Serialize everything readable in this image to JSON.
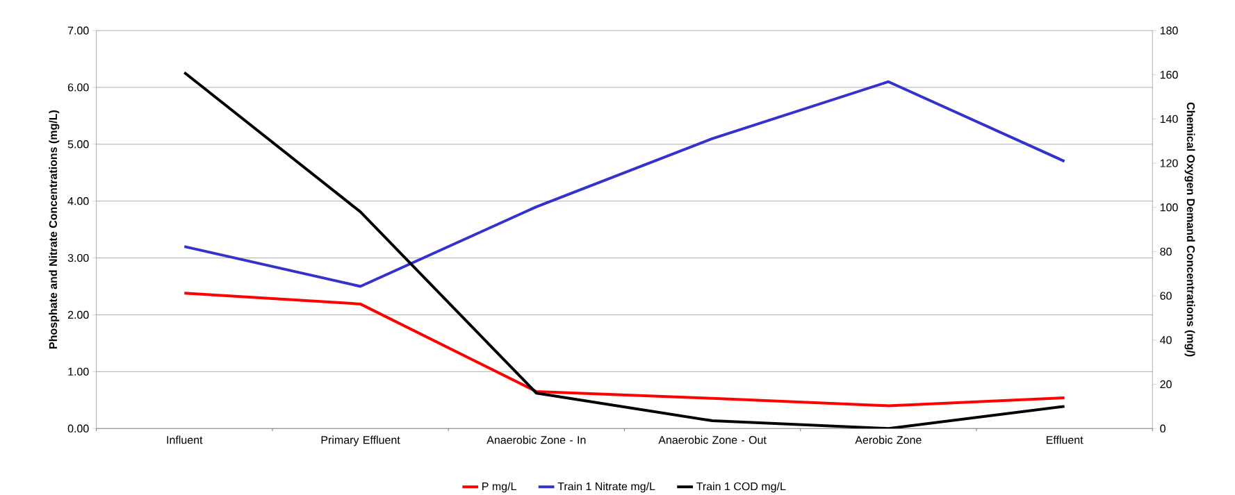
{
  "chart_data": {
    "type": "line",
    "categories": [
      "Influent",
      "Primary Effluent",
      "Anaerobic Zone - In",
      "Anaerobic Zone - Out",
      "Aerobic Zone",
      "Effluent"
    ],
    "ylabel": "Phosphate and Nitrate Concentrations (mg/L)",
    "y2label": "Chemical Oxygen Demand Concentrations (mg/)",
    "ylim": [
      0,
      7
    ],
    "yticks": [
      {
        "value": 0,
        "label": "0.00"
      },
      {
        "value": 1,
        "label": "1.00"
      },
      {
        "value": 2,
        "label": "2.00"
      },
      {
        "value": 3,
        "label": "3.00"
      },
      {
        "value": 4,
        "label": "4.00"
      },
      {
        "value": 5,
        "label": "5.00"
      },
      {
        "value": 6,
        "label": "6.00"
      },
      {
        "value": 7,
        "label": "7.00"
      }
    ],
    "y2lim": [
      0,
      180
    ],
    "y2ticks": [
      0,
      20,
      40,
      60,
      80,
      100,
      120,
      140,
      160,
      180
    ],
    "grid": "y",
    "legend": "bottom",
    "marker": "none",
    "line_style": "solid",
    "series": [
      {
        "name": "P mg/L",
        "color": "#ff0000",
        "values": [
          2.38,
          2.19,
          0.65,
          0.53,
          0.4,
          0.54
        ]
      },
      {
        "name": "Train 1 Nitrate mg/L",
        "color": "#3333cc",
        "values": [
          3.2,
          2.5,
          3.9,
          5.1,
          6.1,
          4.7
        ]
      },
      {
        "name": "Train 1 COD mg/L",
        "color": "#000000",
        "axis": "y2",
        "values": [
          161,
          98,
          16,
          3.5,
          0,
          10
        ]
      }
    ]
  }
}
